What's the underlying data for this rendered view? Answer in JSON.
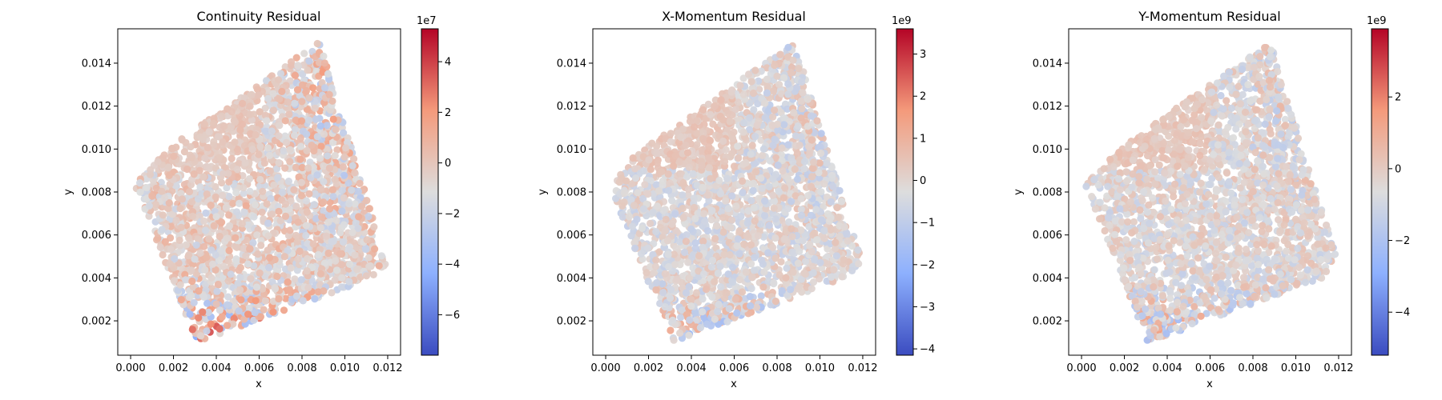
{
  "chart_data": [
    {
      "type": "scatter",
      "title": "Continuity Residual",
      "xlabel": "x",
      "ylabel": "y",
      "xlim": [
        -0.0006,
        0.0126
      ],
      "ylim": [
        0.0004,
        0.0156
      ],
      "xticks": [
        "0.000",
        "0.002",
        "0.004",
        "0.006",
        "0.008",
        "0.010",
        "0.012"
      ],
      "yticks": [
        "0.002",
        "0.004",
        "0.006",
        "0.008",
        "0.010",
        "0.012",
        "0.014"
      ],
      "colormap": "coolwarm",
      "colorbar": {
        "range": [
          -7.6,
          5.3
        ],
        "ticks": [
          "−6",
          "−4",
          "−2",
          "0",
          "2",
          "4"
        ],
        "exponent": "1e7"
      },
      "pattern": {
        "base": 0.5,
        "spread": 0.35,
        "top_right_boost": 0.3,
        "bottom_boost": 0.35,
        "mean": 0.25
      }
    },
    {
      "type": "scatter",
      "title": "X-Momentum Residual",
      "xlabel": "x",
      "ylabel": "y",
      "xlim": [
        -0.0006,
        0.0126
      ],
      "ylim": [
        0.0004,
        0.0156
      ],
      "xticks": [
        "0.000",
        "0.002",
        "0.004",
        "0.006",
        "0.008",
        "0.010",
        "0.012"
      ],
      "yticks": [
        "0.002",
        "0.004",
        "0.006",
        "0.008",
        "0.010",
        "0.012",
        "0.014"
      ],
      "colormap": "coolwarm",
      "colorbar": {
        "range": [
          -4.15,
          3.6
        ],
        "ticks": [
          "−4",
          "−3",
          "−2",
          "−1",
          "0",
          "1",
          "2",
          "3"
        ],
        "exponent": "1e9"
      },
      "pattern": {
        "base": 0.5,
        "spread": 0.3,
        "top_right_boost": 0.15,
        "bottom_boost": 0.25,
        "mean": 0.05
      }
    },
    {
      "type": "scatter",
      "title": "Y-Momentum Residual",
      "xlabel": "x",
      "ylabel": "y",
      "xlim": [
        -0.0006,
        0.0126
      ],
      "ylim": [
        0.0004,
        0.0156
      ],
      "xticks": [
        "0.000",
        "0.002",
        "0.004",
        "0.006",
        "0.008",
        "0.010",
        "0.012"
      ],
      "yticks": [
        "0.002",
        "0.004",
        "0.006",
        "0.008",
        "0.010",
        "0.012",
        "0.014"
      ],
      "colormap": "coolwarm",
      "colorbar": {
        "range": [
          -5.2,
          3.9
        ],
        "ticks": [
          "−4",
          "−2",
          "0",
          "2"
        ],
        "exponent": "1e9"
      },
      "pattern": {
        "base": 0.5,
        "spread": 0.3,
        "top_right_boost": 0.15,
        "bottom_boost": 0.3,
        "mean": 0.08
      }
    }
  ]
}
